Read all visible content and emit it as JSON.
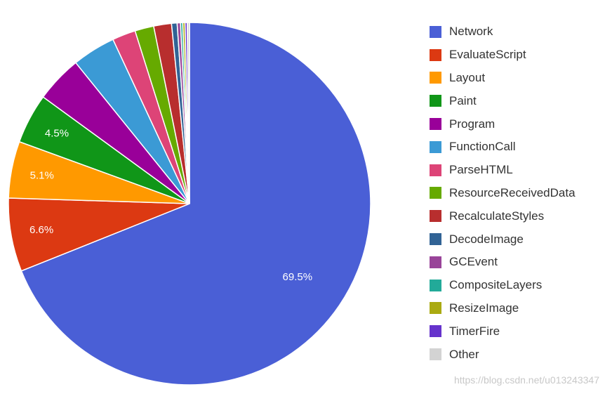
{
  "chart_data": {
    "type": "pie",
    "start_angle_deg": 0,
    "direction": "clockwise",
    "slices": [
      {
        "name": "Network",
        "value": 69.5,
        "color": "#4a5fd6",
        "label": "69.5%"
      },
      {
        "name": "EvaluateScript",
        "value": 6.6,
        "color": "#dc3912",
        "label": "6.6%"
      },
      {
        "name": "Layout",
        "value": 5.1,
        "color": "#ff9900",
        "label": "5.1%"
      },
      {
        "name": "Paint",
        "value": 4.5,
        "color": "#109618",
        "label": "4.5%"
      },
      {
        "name": "Program",
        "value": 4.2,
        "color": "#990099",
        "label": ""
      },
      {
        "name": "FunctionCall",
        "value": 3.9,
        "color": "#3b9ad5",
        "label": ""
      },
      {
        "name": "ParseHTML",
        "value": 2.1,
        "color": "#dd4477",
        "label": ""
      },
      {
        "name": "ResourceReceivedData",
        "value": 1.7,
        "color": "#66aa00",
        "label": ""
      },
      {
        "name": "RecalculateStyles",
        "value": 1.6,
        "color": "#b82e2e",
        "label": ""
      },
      {
        "name": "DecodeImage",
        "value": 0.5,
        "color": "#316395",
        "label": ""
      },
      {
        "name": "GCEvent",
        "value": 0.3,
        "color": "#994499",
        "label": ""
      },
      {
        "name": "CompositeLayers",
        "value": 0.2,
        "color": "#22aa99",
        "label": ""
      },
      {
        "name": "ResizeImage",
        "value": 0.2,
        "color": "#aaaa11",
        "label": ""
      },
      {
        "name": "TimerFire",
        "value": 0.2,
        "color": "#6633cc",
        "label": ""
      },
      {
        "name": "Other",
        "value": 0.2,
        "color": "#d3d3d3",
        "label": ""
      }
    ],
    "legend_position": "right"
  },
  "watermark": "https://blog.csdn.net/u013243347"
}
